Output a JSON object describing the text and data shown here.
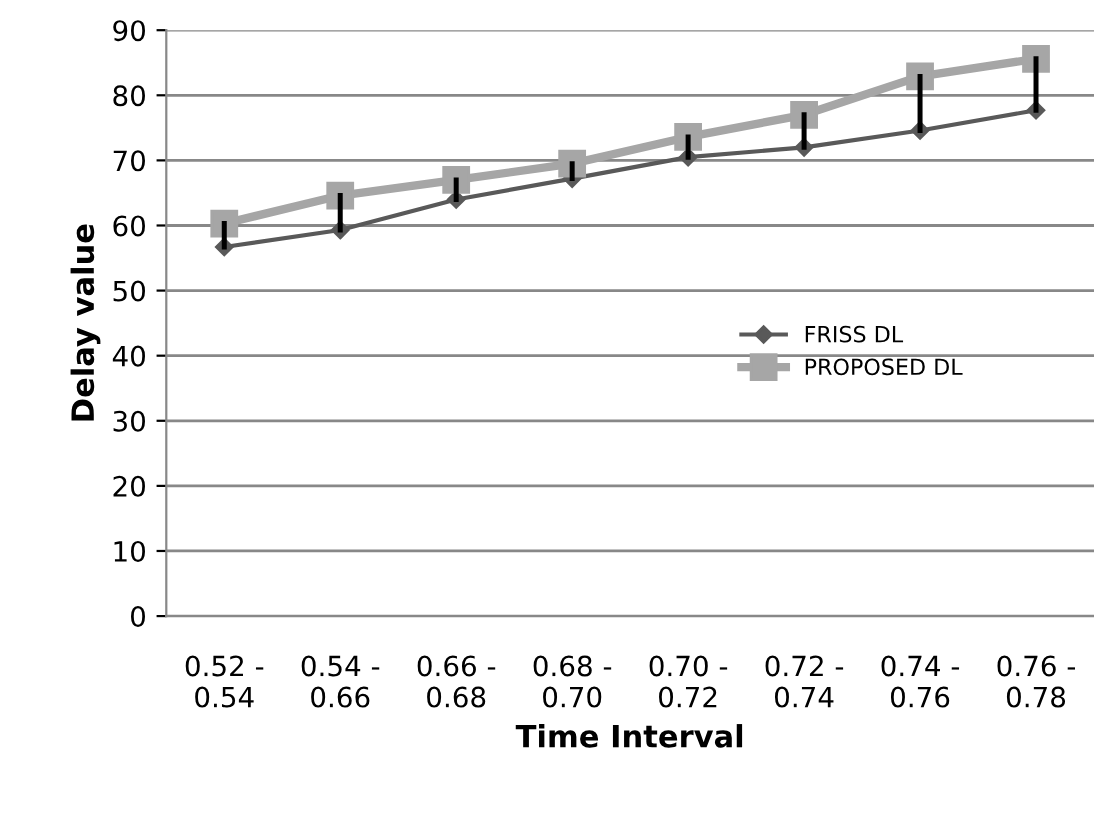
{
  "chart_data": {
    "type": "line",
    "xlabel": "Time Interval",
    "ylabel": "Delay value",
    "categories": [
      "0.52 -\n0.54",
      "0.54 -\n0.66",
      "0.66 -\n0.68",
      "0.68 -\n0.70",
      "0.70 -\n0.72",
      "0.72 -\n0.74",
      "0.74 -\n0.76",
      "0.76 -\n0.78"
    ],
    "series": [
      {
        "name": "FRISS DL",
        "color": "#595959",
        "marker": "diamond",
        "values": [
          56.7,
          59.3,
          64,
          67.2,
          70.5,
          72,
          74.6,
          77.7
        ],
        "errors": [
          [
            56.7,
            60.3
          ],
          [
            59.3,
            64.6
          ],
          [
            64,
            67
          ],
          [
            67.2,
            69.5
          ],
          [
            70.5,
            73.6
          ],
          [
            72,
            77
          ],
          [
            74.6,
            82.9
          ],
          [
            77.7,
            85.6
          ]
        ]
      },
      {
        "name": "PROPOSED DL",
        "color": "#a6a6a6",
        "marker": "square",
        "values": [
          60.3,
          64.6,
          67,
          69.5,
          73.6,
          77,
          82.9,
          85.6
        ]
      }
    ],
    "ylim": [
      0,
      90
    ],
    "yticks": [
      0,
      10,
      20,
      30,
      40,
      50,
      60,
      70,
      80,
      90
    ],
    "grid": "y",
    "legend": "right",
    "line_style": "solid"
  }
}
